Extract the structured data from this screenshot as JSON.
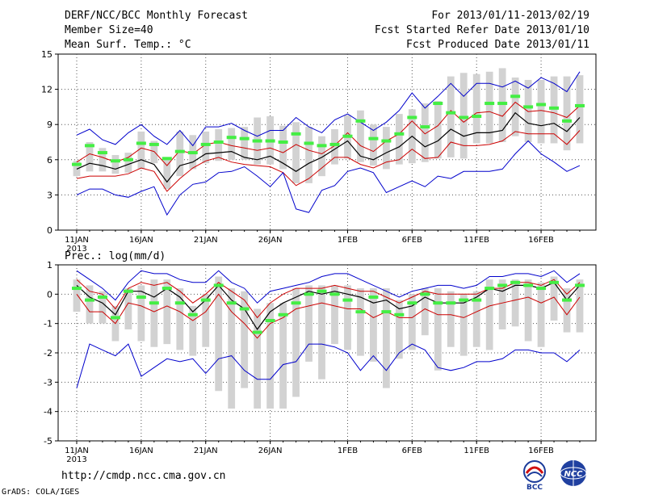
{
  "header": {
    "title": "DERF/NCC/BCC Monthly Forecast",
    "member_size": "Member Size=40",
    "variable": "Mean Surf. Temp.: °C",
    "period": "For 2013/01/11-2013/02/19",
    "started": "Fcst Started Refer Date 2013/01/10",
    "produced": "Fcst Produced Date 2013/01/11"
  },
  "footer": {
    "url": "http://cmdp.ncc.cma.gov.cn",
    "credit": "GrADS: COLA/IGES"
  },
  "logos": {
    "left": "BCC",
    "right": "NCC"
  },
  "colors": {
    "envelope": "#0000cc",
    "spread": "#cc0000",
    "mean": "#000000",
    "obs": "#44ee44",
    "box": "#d2d2d2",
    "grid": "#555555"
  },
  "chart_data": [
    {
      "type": "line",
      "title": "Mean Surf. Temp.: °C",
      "x": [
        "11JAN",
        "12JAN",
        "13JAN",
        "14JAN",
        "15JAN",
        "16JAN",
        "17JAN",
        "18JAN",
        "19JAN",
        "20JAN",
        "21JAN",
        "22JAN",
        "23JAN",
        "24JAN",
        "25JAN",
        "26JAN",
        "27JAN",
        "28JAN",
        "29JAN",
        "30JAN",
        "31JAN",
        "1FEB",
        "2FEB",
        "3FEB",
        "4FEB",
        "5FEB",
        "6FEB",
        "7FEB",
        "8FEB",
        "9FEB",
        "10FEB",
        "11FEB",
        "12FEB",
        "13FEB",
        "14FEB",
        "15FEB",
        "16FEB",
        "17FEB",
        "18FEB",
        "19FEB"
      ],
      "xticks": [
        {
          "label": "11JAN",
          "sub": "2013",
          "index": 0
        },
        {
          "label": "16JAN",
          "index": 5
        },
        {
          "label": "21JAN",
          "index": 10
        },
        {
          "label": "26JAN",
          "index": 15
        },
        {
          "label": "1FEB",
          "index": 21
        },
        {
          "label": "6FEB",
          "index": 26
        },
        {
          "label": "11FEB",
          "index": 31
        },
        {
          "label": "16FEB",
          "index": 36
        }
      ],
      "ylim": [
        0,
        15
      ],
      "yticks": [
        0,
        3,
        6,
        9,
        12,
        15
      ],
      "series": [
        {
          "name": "max",
          "role": "envelope",
          "values": [
            8.1,
            8.6,
            7.7,
            7.3,
            8.3,
            9.0,
            8.0,
            7.3,
            8.5,
            7.2,
            8.8,
            8.8,
            9.1,
            8.5,
            8.0,
            8.5,
            8.5,
            9.6,
            8.8,
            8.3,
            9.4,
            9.9,
            9.2,
            8.5,
            9.2,
            10.2,
            11.7,
            10.4,
            11.4,
            12.5,
            11.4,
            12.5,
            12.5,
            12.2,
            12.7,
            12.1,
            13.0,
            12.5,
            11.8,
            13.5
          ]
        },
        {
          "name": "upper",
          "role": "spread",
          "values": [
            5.8,
            6.5,
            6.2,
            5.8,
            6.2,
            7.0,
            6.7,
            5.5,
            6.8,
            6.5,
            7.3,
            7.5,
            7.2,
            7.0,
            6.8,
            7.0,
            6.6,
            7.3,
            6.8,
            6.5,
            7.2,
            8.3,
            7.2,
            6.7,
            7.6,
            8.2,
            9.3,
            8.2,
            8.9,
            10.2,
            9.2,
            10.0,
            10.1,
            9.7,
            10.9,
            10.1,
            10.2,
            10.0,
            9.6,
            10.6
          ]
        },
        {
          "name": "mean",
          "role": "mean",
          "values": [
            5.2,
            5.7,
            5.5,
            5.2,
            5.6,
            6.0,
            5.6,
            4.1,
            5.5,
            5.8,
            6.5,
            6.6,
            6.7,
            6.2,
            6.0,
            6.3,
            5.7,
            5.0,
            5.7,
            6.2,
            6.9,
            7.6,
            6.3,
            6.0,
            6.6,
            7.1,
            8.0,
            7.1,
            7.6,
            8.6,
            8.0,
            8.3,
            8.3,
            8.5,
            10.0,
            9.1,
            8.9,
            9.1,
            8.4,
            9.6
          ]
        },
        {
          "name": "lower",
          "role": "spread",
          "values": [
            4.4,
            4.6,
            4.6,
            4.6,
            4.8,
            5.3,
            5.0,
            3.3,
            4.4,
            5.3,
            5.9,
            6.2,
            5.8,
            5.6,
            5.5,
            5.4,
            4.9,
            3.8,
            4.4,
            5.3,
            6.2,
            6.2,
            5.6,
            5.3,
            5.8,
            6.0,
            6.9,
            6.1,
            6.2,
            7.5,
            7.2,
            7.2,
            7.3,
            7.6,
            8.4,
            8.2,
            8.2,
            8.2,
            7.3,
            8.5
          ]
        },
        {
          "name": "min",
          "role": "envelope",
          "values": [
            3.0,
            3.5,
            3.5,
            3.0,
            2.8,
            3.3,
            3.7,
            1.3,
            3.0,
            3.9,
            4.1,
            4.9,
            5.0,
            5.4,
            4.6,
            3.7,
            4.9,
            1.8,
            1.5,
            3.4,
            3.8,
            5.0,
            5.3,
            4.9,
            3.2,
            3.7,
            4.2,
            3.7,
            4.6,
            4.4,
            5.0,
            5.0,
            5.0,
            5.2,
            6.5,
            7.6,
            6.5,
            5.8,
            5.0,
            5.5
          ]
        },
        {
          "name": "observed",
          "role": "obs",
          "values": [
            5.6,
            7.2,
            6.6,
            5.9,
            6.0,
            7.4,
            7.3,
            6.1,
            6.7,
            6.6,
            7.3,
            7.5,
            7.9,
            7.8,
            7.6,
            7.6,
            7.5,
            8.2,
            7.4,
            7.2,
            7.3,
            8.0,
            9.3,
            7.8,
            7.6,
            8.2,
            9.6,
            8.8,
            10.8,
            10.0,
            9.6,
            9.7,
            10.8,
            10.8,
            11.4,
            10.5,
            10.7,
            10.4,
            9.3,
            10.6
          ]
        }
      ],
      "boxes": {
        "high": [
          5.9,
          7.5,
          7.0,
          6.4,
          6.6,
          8.4,
          7.6,
          6.2,
          8.4,
          8.1,
          8.4,
          8.6,
          8.7,
          8.8,
          9.6,
          9.7,
          8.9,
          9.2,
          8.8,
          8.0,
          8.6,
          9.8,
          10.2,
          9.0,
          8.8,
          9.9,
          10.3,
          10.8,
          11.0,
          13.1,
          13.4,
          13.3,
          13.5,
          13.8,
          13.0,
          12.8,
          12.8,
          13.1,
          13.1,
          13.2
        ],
        "low": [
          4.6,
          5.0,
          5.0,
          4.8,
          4.9,
          5.2,
          5.7,
          3.5,
          4.6,
          5.2,
          5.7,
          5.9,
          6.0,
          6.0,
          5.6,
          5.6,
          5.2,
          4.0,
          4.0,
          4.6,
          5.6,
          6.1,
          5.8,
          5.5,
          5.2,
          5.6,
          5.7,
          5.8,
          6.1,
          6.2,
          6.1,
          7.4,
          7.4,
          7.5,
          8.0,
          7.5,
          7.4,
          7.4,
          6.8,
          7.4
        ]
      }
    },
    {
      "type": "line",
      "title": "Prec.: log(mm/d)",
      "x": [
        "11JAN",
        "12JAN",
        "13JAN",
        "14JAN",
        "15JAN",
        "16JAN",
        "17JAN",
        "18JAN",
        "19JAN",
        "20JAN",
        "21JAN",
        "22JAN",
        "23JAN",
        "24JAN",
        "25JAN",
        "26JAN",
        "27JAN",
        "28JAN",
        "29JAN",
        "30JAN",
        "31JAN",
        "1FEB",
        "2FEB",
        "3FEB",
        "4FEB",
        "5FEB",
        "6FEB",
        "7FEB",
        "8FEB",
        "9FEB",
        "10FEB",
        "11FEB",
        "12FEB",
        "13FEB",
        "14FEB",
        "15FEB",
        "16FEB",
        "17FEB",
        "18FEB",
        "19FEB"
      ],
      "xticks": [
        {
          "label": "11JAN",
          "sub": "2013",
          "index": 0
        },
        {
          "label": "16JAN",
          "index": 5
        },
        {
          "label": "21JAN",
          "index": 10
        },
        {
          "label": "26JAN",
          "index": 15
        },
        {
          "label": "1FEB",
          "index": 21
        },
        {
          "label": "6FEB",
          "index": 26
        },
        {
          "label": "11FEB",
          "index": 31
        },
        {
          "label": "16FEB",
          "index": 36
        }
      ],
      "ylim": [
        -5,
        1
      ],
      "yticks": [
        -5,
        -4,
        -3,
        -2,
        -1,
        0,
        1
      ],
      "series": [
        {
          "name": "max",
          "role": "envelope",
          "values": [
            0.8,
            0.5,
            0.2,
            -0.2,
            0.4,
            0.8,
            0.7,
            0.7,
            0.5,
            0.4,
            0.4,
            0.8,
            0.4,
            0.2,
            -0.3,
            0.1,
            0.2,
            0.3,
            0.4,
            0.6,
            0.7,
            0.7,
            0.5,
            0.3,
            0.1,
            -0.1,
            0.1,
            0.2,
            0.3,
            0.3,
            0.2,
            0.3,
            0.6,
            0.6,
            0.7,
            0.7,
            0.6,
            0.8,
            0.4,
            0.7
          ]
        },
        {
          "name": "upper",
          "role": "spread",
          "values": [
            0.5,
            0.1,
            0.0,
            -0.5,
            0.2,
            0.4,
            0.3,
            0.4,
            0.1,
            -0.3,
            0.0,
            0.4,
            0.1,
            -0.2,
            -0.8,
            -0.3,
            0.0,
            0.2,
            0.2,
            0.2,
            0.3,
            0.2,
            0.1,
            0.1,
            -0.1,
            -0.3,
            -0.1,
            0.1,
            0.0,
            0.0,
            0.0,
            0.0,
            0.2,
            0.2,
            0.4,
            0.4,
            0.3,
            0.5,
            0.0,
            0.4
          ]
        },
        {
          "name": "mean",
          "role": "mean",
          "values": [
            0.3,
            -0.1,
            -0.3,
            -0.7,
            0.1,
            0.1,
            -0.1,
            0.2,
            -0.1,
            -0.6,
            -0.2,
            0.3,
            -0.2,
            -0.5,
            -1.2,
            -0.6,
            -0.3,
            -0.1,
            0.1,
            0.0,
            0.1,
            0.0,
            -0.1,
            -0.3,
            -0.2,
            -0.5,
            -0.4,
            -0.1,
            -0.3,
            -0.3,
            -0.3,
            -0.1,
            0.2,
            0.1,
            0.3,
            0.3,
            0.2,
            0.4,
            -0.2,
            0.3
          ]
        },
        {
          "name": "lower",
          "role": "spread",
          "values": [
            0.0,
            -0.6,
            -0.6,
            -1.0,
            -0.3,
            -0.4,
            -0.6,
            -0.4,
            -0.6,
            -0.9,
            -0.6,
            0.0,
            -0.6,
            -1.0,
            -1.5,
            -1.0,
            -0.8,
            -0.5,
            -0.4,
            -0.3,
            -0.4,
            -0.5,
            -0.5,
            -0.8,
            -0.6,
            -0.8,
            -0.8,
            -0.5,
            -0.7,
            -0.7,
            -0.8,
            -0.6,
            -0.4,
            -0.3,
            -0.2,
            -0.1,
            -0.3,
            -0.1,
            -0.7,
            -0.1
          ]
        },
        {
          "name": "min",
          "role": "envelope",
          "values": [
            -3.2,
            -1.7,
            -1.9,
            -2.1,
            -1.7,
            -2.8,
            -2.5,
            -2.2,
            -2.3,
            -2.2,
            -2.7,
            -2.2,
            -2.1,
            -2.6,
            -2.9,
            -2.9,
            -2.4,
            -2.3,
            -1.7,
            -1.7,
            -1.8,
            -2.0,
            -2.6,
            -2.1,
            -2.6,
            -2.0,
            -1.7,
            -1.9,
            -2.5,
            -2.6,
            -2.5,
            -2.3,
            -2.3,
            -2.2,
            -1.9,
            -1.9,
            -2.0,
            -2.0,
            -2.3,
            -1.9
          ]
        },
        {
          "name": "observed",
          "role": "obs",
          "values": [
            0.2,
            -0.2,
            -0.1,
            -0.8,
            0.1,
            -0.1,
            -0.3,
            0.2,
            -0.3,
            -0.7,
            -0.2,
            0.3,
            -0.3,
            -0.5,
            -1.3,
            -0.9,
            -0.7,
            -0.3,
            0.0,
            0.1,
            0.0,
            -0.2,
            -0.6,
            -0.1,
            -0.6,
            -0.7,
            -0.3,
            0.0,
            -0.3,
            -0.3,
            -0.2,
            -0.2,
            0.2,
            0.3,
            0.4,
            0.3,
            0.2,
            0.4,
            -0.2,
            0.3
          ]
        }
      ],
      "boxes": {
        "high": [
          0.5,
          0.3,
          0.1,
          -0.4,
          0.2,
          0.3,
          0.5,
          0.5,
          0.2,
          -0.4,
          0.0,
          0.6,
          0.2,
          0.1,
          -0.5,
          -0.3,
          -0.3,
          0.2,
          0.3,
          0.3,
          0.3,
          0.3,
          0.2,
          0.2,
          0.2,
          -0.2,
          0.0,
          0.2,
          0.2,
          0.1,
          0.0,
          0.1,
          0.5,
          0.5,
          0.5,
          0.5,
          0.4,
          0.6,
          0.2,
          0.5
        ],
        "low": [
          -0.6,
          -1.0,
          -1.0,
          -1.6,
          -1.2,
          -1.6,
          -1.8,
          -1.7,
          -1.9,
          -2.1,
          -1.8,
          -3.3,
          -3.9,
          -3.2,
          -3.9,
          -3.9,
          -3.9,
          -3.5,
          -2.3,
          -2.9,
          -1.7,
          -1.9,
          -2.1,
          -2.3,
          -3.2,
          -2.2,
          -1.9,
          -1.4,
          -2.6,
          -1.8,
          -2.1,
          -1.8,
          -1.9,
          -1.2,
          -1.1,
          -1.6,
          -1.8,
          -0.9,
          -1.3,
          -1.3
        ]
      }
    }
  ]
}
